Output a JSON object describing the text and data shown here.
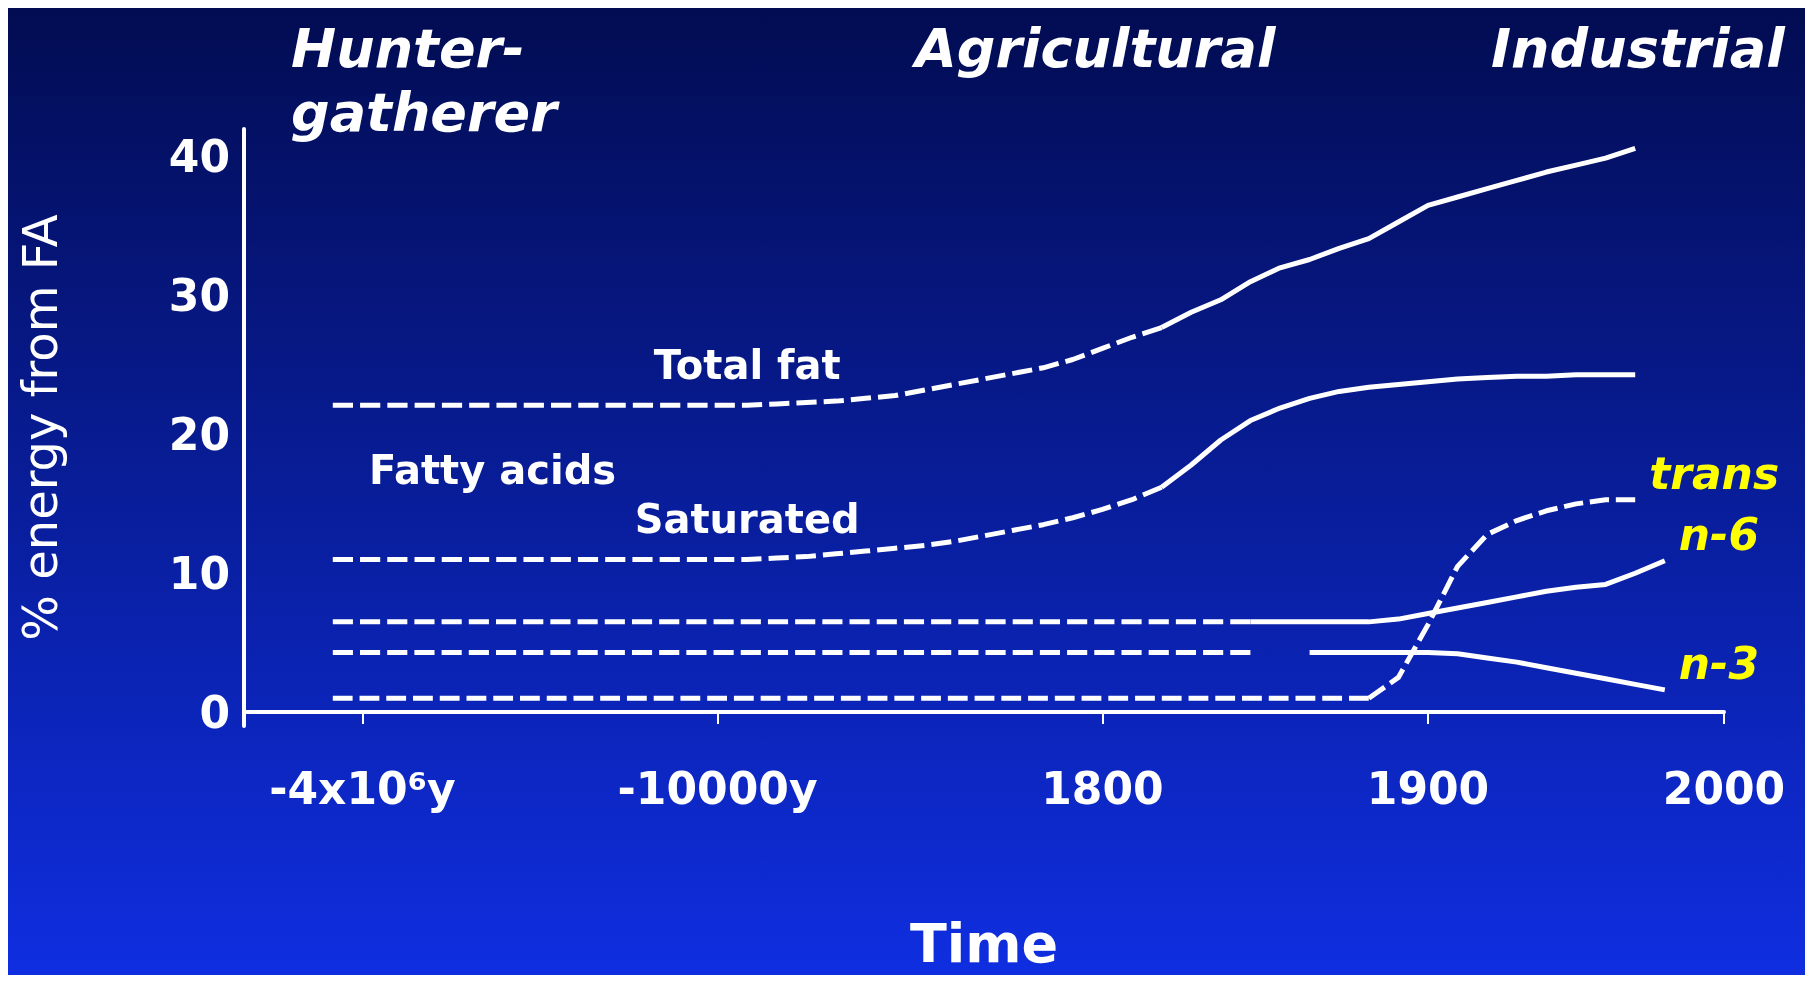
{
  "chart_data": {
    "type": "line",
    "xlabel": "Time",
    "ylabel": "% energy from FA",
    "categories": [
      null,
      null,
      null,
      null,
      "-4x10⁶y",
      null,
      null,
      null,
      null,
      null,
      null,
      null,
      null,
      null,
      null,
      null,
      "-10000y",
      null,
      null,
      null,
      null,
      null,
      null,
      null,
      null,
      null,
      null,
      null,
      null,
      "1800",
      null,
      null,
      null,
      null,
      null,
      null,
      null,
      null,
      null,
      null,
      "1900",
      null,
      null,
      null,
      null,
      null,
      null,
      null,
      null,
      null,
      "2000"
    ],
    "ylim": [
      -1,
      42
    ],
    "yticks": [
      0,
      10,
      20,
      30,
      40
    ],
    "grid": false,
    "marker": "none",
    "annotations": [
      "Hunter-gatherer",
      "Agricultural",
      "Industrial",
      "Fatty acids"
    ],
    "series": [
      {
        "name": "Total fat",
        "color": "#ffffff",
        "line_style": "dashed",
        "values": [
          null,
          null,
          null,
          22.1,
          22.1,
          22.1,
          22.1,
          22.1,
          22.1,
          22.1,
          22.1,
          22.1,
          22.1,
          22.1,
          22.1,
          22.1,
          22.1,
          22.1,
          22.2,
          22.3,
          22.4,
          22.6,
          22.8,
          23.2,
          23.6,
          24.0,
          24.4,
          24.8,
          25.4,
          26.2,
          27.0,
          27.7,
          null,
          null,
          null,
          null,
          null,
          null,
          null,
          null,
          null,
          null,
          null,
          null,
          null,
          null,
          null,
          null,
          null,
          null,
          null
        ]
      },
      {
        "color": "#ffffff",
        "line_style": "solid",
        "values": [
          null,
          null,
          null,
          null,
          null,
          null,
          null,
          null,
          null,
          null,
          null,
          null,
          null,
          null,
          null,
          null,
          null,
          null,
          null,
          null,
          null,
          null,
          null,
          null,
          null,
          null,
          null,
          null,
          null,
          null,
          null,
          27.7,
          28.8,
          29.7,
          31.0,
          32.0,
          32.6,
          33.4,
          34.1,
          35.3,
          36.5,
          37.1,
          37.7,
          38.3,
          38.9,
          39.4,
          39.9,
          40.6,
          null,
          null,
          null
        ]
      },
      {
        "name": "Saturated",
        "color": "#ffffff",
        "line_style": "dashed",
        "values": [
          null,
          null,
          null,
          11.0,
          11.0,
          11.0,
          11.0,
          11.0,
          11.0,
          11.0,
          11.0,
          11.0,
          11.0,
          11.0,
          11.0,
          11.0,
          11.0,
          11.0,
          11.1,
          11.2,
          11.4,
          11.6,
          11.8,
          12.0,
          12.3,
          12.7,
          13.1,
          13.5,
          14.0,
          14.6,
          15.3,
          16.2,
          null,
          null,
          null,
          null,
          null,
          null,
          null,
          null,
          null,
          null,
          null,
          null,
          null,
          null,
          null,
          null,
          null,
          null,
          null
        ]
      },
      {
        "color": "#ffffff",
        "line_style": "solid",
        "values": [
          null,
          null,
          null,
          null,
          null,
          null,
          null,
          null,
          null,
          null,
          null,
          null,
          null,
          null,
          null,
          null,
          null,
          null,
          null,
          null,
          null,
          null,
          null,
          null,
          null,
          null,
          null,
          null,
          null,
          null,
          null,
          16.2,
          17.8,
          19.6,
          21.0,
          21.9,
          22.6,
          23.1,
          23.4,
          23.6,
          23.8,
          24.0,
          24.1,
          24.2,
          24.2,
          24.3,
          24.3,
          24.3,
          null,
          null,
          null
        ]
      },
      {
        "color": "#ffffff",
        "line_style": "dashed",
        "values": [
          null,
          null,
          null,
          6.5,
          6.5,
          6.5,
          6.5,
          6.5,
          6.5,
          6.5,
          6.5,
          6.5,
          6.5,
          6.5,
          6.5,
          6.5,
          6.5,
          6.5,
          6.5,
          6.5,
          6.5,
          6.5,
          6.5,
          6.5,
          6.5,
          6.5,
          6.5,
          6.5,
          6.5,
          6.5,
          6.5,
          6.5,
          6.5,
          6.5,
          6.5,
          null,
          null,
          null,
          null,
          null,
          null,
          null,
          null,
          null,
          null,
          null,
          null,
          null,
          null,
          null,
          null
        ]
      },
      {
        "name": "n-6",
        "color": "#ffffff",
        "line_style": "solid",
        "values": [
          null,
          null,
          null,
          null,
          null,
          null,
          null,
          null,
          null,
          null,
          null,
          null,
          null,
          null,
          null,
          null,
          null,
          null,
          null,
          null,
          null,
          null,
          null,
          null,
          null,
          null,
          null,
          null,
          null,
          null,
          null,
          null,
          null,
          null,
          6.5,
          6.5,
          6.5,
          6.5,
          6.5,
          6.7,
          7.1,
          7.5,
          7.9,
          8.3,
          8.7,
          9.0,
          9.2,
          10.0,
          10.9,
          null,
          null
        ]
      },
      {
        "color": "#ffffff",
        "line_style": "dashed",
        "values": [
          null,
          null,
          null,
          4.3,
          4.3,
          4.3,
          4.3,
          4.3,
          4.3,
          4.3,
          4.3,
          4.3,
          4.3,
          4.3,
          4.3,
          4.3,
          4.3,
          4.3,
          4.3,
          4.3,
          4.3,
          4.3,
          4.3,
          4.3,
          4.3,
          4.3,
          4.3,
          4.3,
          4.3,
          4.3,
          4.3,
          4.3,
          4.3,
          4.3,
          4.3,
          null,
          null,
          null,
          null,
          null,
          null,
          null,
          null,
          null,
          null,
          null,
          null,
          null,
          null,
          null,
          null
        ]
      },
      {
        "name": "n-3",
        "color": "#ffffff",
        "line_style": "solid",
        "values": [
          null,
          null,
          null,
          null,
          null,
          null,
          null,
          null,
          null,
          null,
          null,
          null,
          null,
          null,
          null,
          null,
          null,
          null,
          null,
          null,
          null,
          null,
          null,
          null,
          null,
          null,
          null,
          null,
          null,
          null,
          null,
          null,
          null,
          null,
          null,
          null,
          4.3,
          4.3,
          4.3,
          4.3,
          4.3,
          4.2,
          3.9,
          3.6,
          3.2,
          2.8,
          2.4,
          2.0,
          1.6,
          null,
          null
        ]
      },
      {
        "color": "#ffffff",
        "line_style": "dashed",
        "values": [
          null,
          null,
          null,
          1.0,
          1.0,
          1.0,
          1.0,
          1.0,
          1.0,
          1.0,
          1.0,
          1.0,
          1.0,
          1.0,
          1.0,
          1.0,
          1.0,
          1.0,
          1.0,
          1.0,
          1.0,
          1.0,
          1.0,
          1.0,
          1.0,
          1.0,
          1.0,
          1.0,
          1.0,
          1.0,
          1.0,
          1.0,
          1.0,
          1.0,
          1.0,
          1.0,
          1.0,
          1.0,
          1.0,
          null,
          null,
          null,
          null,
          null,
          null,
          null,
          null,
          null,
          null,
          null,
          null
        ]
      },
      {
        "name": "trans",
        "color": "#ffffff",
        "line_style": "dashed",
        "values": [
          null,
          null,
          null,
          null,
          null,
          null,
          null,
          null,
          null,
          null,
          null,
          null,
          null,
          null,
          null,
          null,
          null,
          null,
          null,
          null,
          null,
          null,
          null,
          null,
          null,
          null,
          null,
          null,
          null,
          null,
          null,
          null,
          null,
          null,
          null,
          null,
          null,
          null,
          1.0,
          2.5,
          6.3,
          10.5,
          12.8,
          13.8,
          14.5,
          15.0,
          15.3,
          15.3,
          null,
          null,
          null
        ]
      }
    ]
  }
}
